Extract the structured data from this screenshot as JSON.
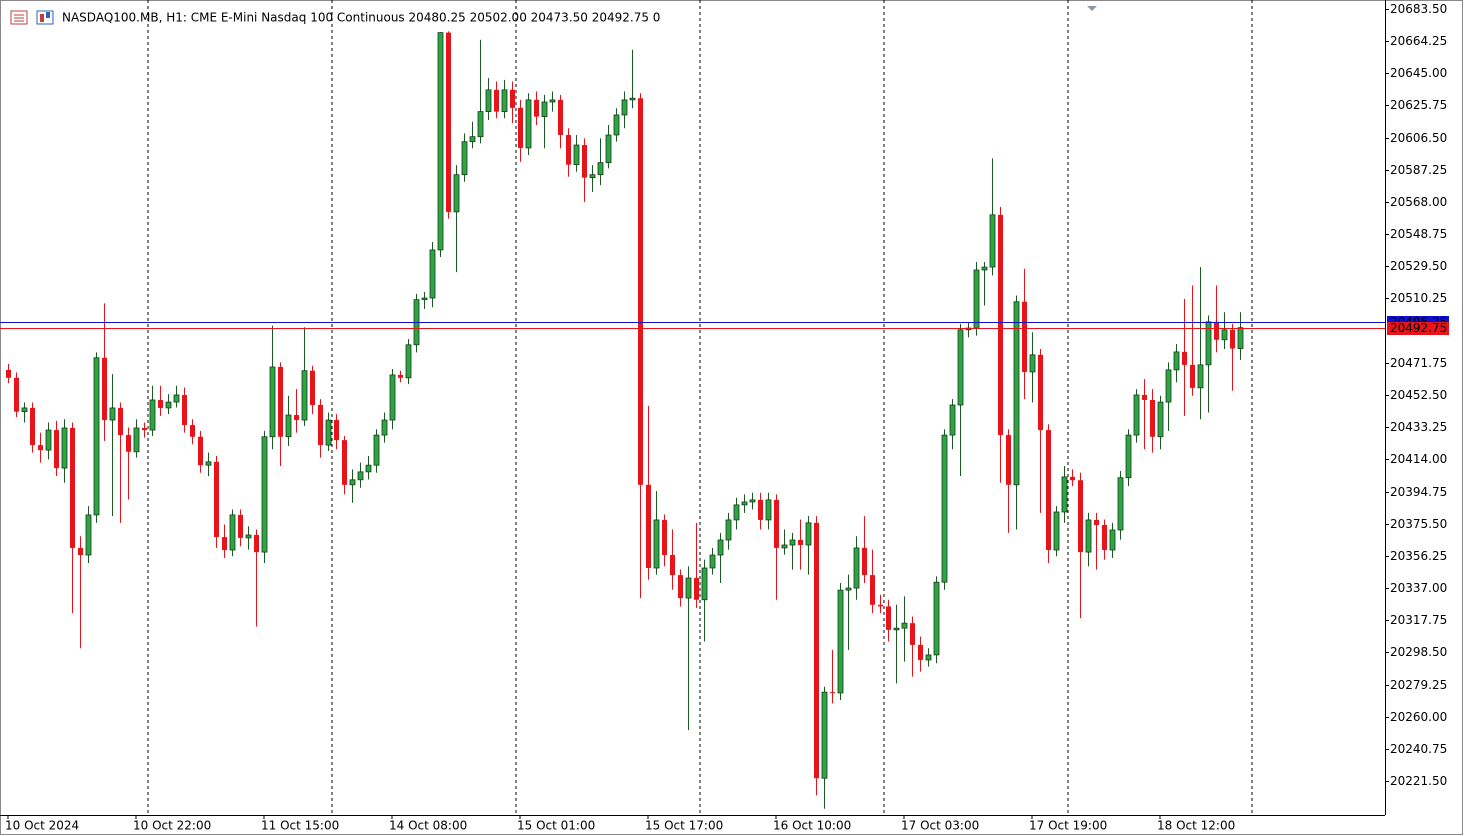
{
  "chart_data": {
    "type": "candlestick",
    "title": "NASDAQ100.MB, H1:  CME E-Mini Nasdaq 100 Continuous  20480.25 20502.00 20473.50 20492.75  0",
    "categories": [
      "10 Oct 2024",
      null,
      null,
      null,
      null,
      null,
      null,
      null,
      null,
      null,
      null,
      null,
      null,
      null,
      null,
      null,
      "10 Oct 22:00",
      null,
      null,
      null,
      null,
      null,
      null,
      null,
      null,
      null,
      null,
      null,
      null,
      null,
      null,
      null,
      "11 Oct 15:00",
      null,
      null,
      null,
      null,
      null,
      null,
      null,
      null,
      null,
      null,
      null,
      null,
      null,
      null,
      null,
      "14 Oct 08:00",
      null,
      null,
      null,
      null,
      null,
      null,
      null,
      null,
      null,
      null,
      null,
      null,
      null,
      null,
      null,
      "15 Oct 01:00",
      null,
      null,
      null,
      null,
      null,
      null,
      null,
      null,
      null,
      null,
      null,
      null,
      null,
      null,
      null,
      "15 Oct 17:00",
      null,
      null,
      null,
      null,
      null,
      null,
      null,
      null,
      null,
      null,
      null,
      null,
      null,
      null,
      null,
      "16 Oct 10:00",
      null,
      null,
      null,
      null,
      null,
      null,
      null,
      null,
      null,
      null,
      null,
      null,
      null,
      null,
      null,
      "17 Oct 03:00",
      null,
      null,
      null,
      null,
      null,
      null,
      null,
      null,
      null,
      null,
      null,
      null,
      null,
      null,
      null,
      "17 Oct 19:00",
      null,
      null,
      null,
      null,
      null,
      null,
      null,
      null,
      null,
      null,
      null,
      null,
      null,
      null,
      null,
      "18 Oct 12:00",
      null,
      null,
      null,
      null,
      null,
      null,
      null,
      null,
      null,
      null
    ],
    "open": [
      20467.5,
      20462.75,
      20442.5,
      20444.75,
      20422.5,
      20419.5,
      20431.5,
      20408.75,
      20432.75,
      20361,
      20356.75,
      20380.75,
      20474.75,
      20437.5,
      20444.75,
      20428.5,
      20418.5,
      20432.75,
      20431.5,
      20449.5,
      20444.75,
      20448.25,
      20452.5,
      20434.5,
      20427.5,
      20410.5,
      20412.5,
      20367.5,
      20359.75,
      20380.75,
      20367,
      20368.75,
      20358.5,
      20427.5,
      20469.25,
      20427.5,
      20440.5,
      20437.5,
      20467,
      20446.5,
      20422.5,
      20437.5,
      20425.5,
      20398.75,
      20401.75,
      20406.5,
      20410.5,
      20428.5,
      20437.5,
      20464.5,
      20462.75,
      20482.5,
      20509.5,
      20510.5,
      20539.25,
      20669.25,
      20562,
      20584.25,
      20604,
      20607,
      20622,
      20635,
      20622,
      20635,
      20624.25,
      20600.25,
      20629,
      20619,
      20627.75,
      20629,
      20608,
      20590.25,
      20602,
      20582.5,
      20584.25,
      20591.5,
      20608,
      20620,
      20629,
      20630,
      20398.75,
      20349,
      20377.75,
      20356.75,
      20344.75,
      20331,
      20343,
      20330,
      20349,
      20356.75,
      20365.75,
      20377.75,
      20386.75,
      20388.5,
      20389.75,
      20377.75,
      20389.75,
      20361,
      20362.75,
      20365.75,
      20362.75,
      20376,
      20223.25,
      20274.75,
      20274.25,
      20335.75,
      20337,
      20361,
      20344.75,
      20327,
      20326,
      20312,
      20313,
      20316,
      20303,
      20294,
      20297,
      20340.5,
      20428.5,
      20446.5,
      20491.5,
      20492.5,
      20527.25,
      20529,
      20560.25,
      20428.5,
      20398.75,
      20508.25,
      20466.25,
      20476.5,
      20431.5,
      20359.75,
      20382.5,
      20403.5,
      20401.5,
      20358.5,
      20377.75,
      20374.75,
      20359.75,
      20371.75,
      20403,
      20428.5,
      20452.5,
      20449.5,
      20427.5,
      20448.25,
      20467.5,
      20478.25,
      20470.5,
      20456.75,
      20470.5,
      20496.25,
      20485.5,
      20491.5,
      20480.25
    ],
    "high": [
      20471,
      20466,
      20448,
      20448,
      20430,
      20436,
      20437,
      20438,
      20436,
      20368,
      20386,
      20478,
      20507.25,
      20465,
      20448,
      20433,
      20438,
      20436,
      20458,
      20458,
      20453,
      20458,
      20457,
      20438,
      20431,
      20418,
      20416,
      20375,
      20384,
      20384,
      20374,
      20372,
      20431,
      20494,
      20472,
      20452,
      20456,
      20493,
      20470,
      20450,
      20442,
      20441,
      20428,
      20408,
      20412,
      20416,
      20432,
      20442,
      20468,
      20467,
      20486,
      20513,
      20514,
      20544,
      20669.5,
      20670,
      20590,
      20609,
      20616,
      20665,
      20642,
      20640,
      20641,
      20640,
      20629,
      20633,
      20634,
      20632,
      20634,
      20632,
      20612,
      20608,
      20606,
      20590,
      20606,
      20614,
      20624,
      20634,
      20659,
      20633,
      20446,
      20395,
      20381,
      20372,
      20348,
      20350,
      20376,
      20354,
      20361,
      20370,
      20382,
      20391,
      20393,
      20394,
      20394,
      20394,
      20393,
      20372,
      20370,
      20378,
      20380,
      20380,
      20278,
      20300,
      20340,
      20345,
      20368,
      20380,
      20360,
      20333,
      20330,
      20327,
      20332,
      20320,
      20308,
      20301,
      20344,
      20432,
      20450,
      20495,
      20496,
      20532,
      20532,
      20594,
      20565,
      20432,
      20512,
      20528,
      20490,
      20480,
      20435,
      20386,
      20410,
      20408,
      20406,
      20382,
      20382,
      20378,
      20376,
      20407,
      20432,
      20456,
      20462,
      20456,
      20452,
      20472,
      20483,
      20510,
      20518,
      20529,
      20500,
      20518,
      20502,
      20495,
      20502
    ],
    "low": [
      20459.5,
      20439.25,
      20436,
      20418,
      20412,
      20414,
      20404,
      20400,
      20322,
      20301,
      20352,
      20376,
      20425,
      20380,
      20376,
      20390,
      20415,
      20427,
      20428,
      20440,
      20441,
      20445,
      20430,
      20423,
      20406,
      20404,
      20361,
      20355,
      20356,
      20362,
      20360,
      20314,
      20352,
      20420,
      20410,
      20422,
      20430,
      20434,
      20441,
      20415,
      20419,
      20420,
      20393,
      20388,
      20397,
      20402,
      20406,
      20424,
      20432,
      20460,
      20459,
      20478,
      20504,
      20505,
      20535,
      20558,
      20526,
      20580,
      20600,
      20603,
      20617,
      20618,
      20618,
      20615,
      20592,
      20596,
      20614,
      20600,
      20622,
      20600,
      20583,
      20586,
      20568,
      20574,
      20578,
      20588,
      20604,
      20612,
      20624,
      20331,
      20342,
      20345,
      20350,
      20336,
      20326,
      20252,
      20325,
      20305,
      20345,
      20340,
      20360,
      20372,
      20382,
      20384,
      20372,
      20372,
      20330,
      20357,
      20348,
      20348,
      20345,
      20213,
      20205,
      20268,
      20270,
      20300,
      20330,
      20340,
      20322,
      20322,
      20305,
      20280,
      20293,
      20284,
      20287,
      20290,
      20292,
      20336,
      20420,
      20404,
      20487,
      20488,
      20506,
      20524,
      20400,
      20370,
      20372,
      20450,
      20448,
      20382,
      20352,
      20356,
      20376,
      20398,
      20319,
      20350,
      20348,
      20354,
      20355,
      20366,
      20398,
      20424,
      20420,
      20418,
      20420,
      20431,
      20460,
      20440,
      20452,
      20438,
      20442,
      20478,
      20480,
      20455,
      20473.5
    ],
    "close": [
      20462.75,
      20442.5,
      20444.75,
      20422.5,
      20419.5,
      20431.5,
      20408.75,
      20432.75,
      20361,
      20356.75,
      20380.75,
      20474.75,
      20437.5,
      20444.75,
      20428.5,
      20418.5,
      20432.75,
      20431.5,
      20449.5,
      20444.75,
      20448.25,
      20452.5,
      20434.5,
      20427.5,
      20410.5,
      20412.5,
      20367.5,
      20359.75,
      20380.75,
      20367,
      20368.75,
      20358.5,
      20427.5,
      20469.25,
      20427.5,
      20440.5,
      20437.5,
      20467,
      20446.5,
      20422.5,
      20437.5,
      20425.5,
      20398.75,
      20401.75,
      20406.5,
      20410.5,
      20428.5,
      20437.5,
      20464.5,
      20462.75,
      20482.5,
      20509.5,
      20510.5,
      20539.25,
      20669.25,
      20562,
      20584.25,
      20604,
      20607,
      20622,
      20635,
      20622,
      20635,
      20624.25,
      20600.25,
      20629,
      20619,
      20627.75,
      20629,
      20608,
      20590.25,
      20602,
      20582.5,
      20584.25,
      20591.5,
      20608,
      20620,
      20629,
      20630,
      20398.75,
      20349,
      20377.75,
      20356.75,
      20344.75,
      20331,
      20343,
      20330,
      20349,
      20356.75,
      20365.75,
      20377.75,
      20386.75,
      20388.5,
      20389.75,
      20377.75,
      20389.75,
      20361,
      20362.75,
      20365.75,
      20362.75,
      20376,
      20223.25,
      20274.75,
      20274.25,
      20335.75,
      20337,
      20361,
      20344.75,
      20327,
      20326,
      20312,
      20313,
      20316,
      20303,
      20294,
      20297,
      20340.5,
      20428.5,
      20446.5,
      20491.5,
      20492.5,
      20527.25,
      20529,
      20560.25,
      20428.5,
      20398.75,
      20508.25,
      20466.25,
      20476.5,
      20431.5,
      20359.75,
      20382.5,
      20403.5,
      20401.5,
      20358.5,
      20377.75,
      20374.75,
      20359.75,
      20371.75,
      20403,
      20428.5,
      20452.5,
      20449.5,
      20427.5,
      20448.25,
      20467.5,
      20478.25,
      20470.5,
      20456.75,
      20470.5,
      20496.25,
      20485.5,
      20491.5,
      20480.25,
      20492.75
    ],
    "up_color": "#2ca640",
    "down_color": "#e8141b",
    "ylim": [
      20201.25,
      20688.75
    ],
    "yticks": [
      {
        "value": 20683.5,
        "label": "20683.50"
      },
      20664.25,
      {
        "value": 20645,
        "label": "20645.00"
      },
      20625.75,
      {
        "value": 20606.5,
        "label": "20606.50"
      },
      20587.25,
      {
        "value": 20568,
        "label": "20568.00"
      },
      20548.75,
      {
        "value": 20529.5,
        "label": "20529.50"
      },
      20510.25,
      20471.75,
      {
        "value": 20452.5,
        "label": "20452.50"
      },
      20433.25,
      {
        "value": 20414,
        "label": "20414.00"
      },
      20394.75,
      {
        "value": 20375.5,
        "label": "20375.50"
      },
      20356.25,
      {
        "value": 20337,
        "label": "20337.00"
      },
      20317.75,
      {
        "value": 20298.5,
        "label": "20298.50"
      },
      20279.25,
      {
        "value": 20260,
        "label": "20260.00"
      },
      20240.75,
      {
        "value": 20221.5,
        "label": "20221.50"
      }
    ],
    "price_lines": [
      {
        "value": 20496.25,
        "label": "20496.25",
        "color": "#1010d0"
      },
      {
        "value": 20492.75,
        "label": "20492.75",
        "color": "#e8141b"
      }
    ]
  }
}
